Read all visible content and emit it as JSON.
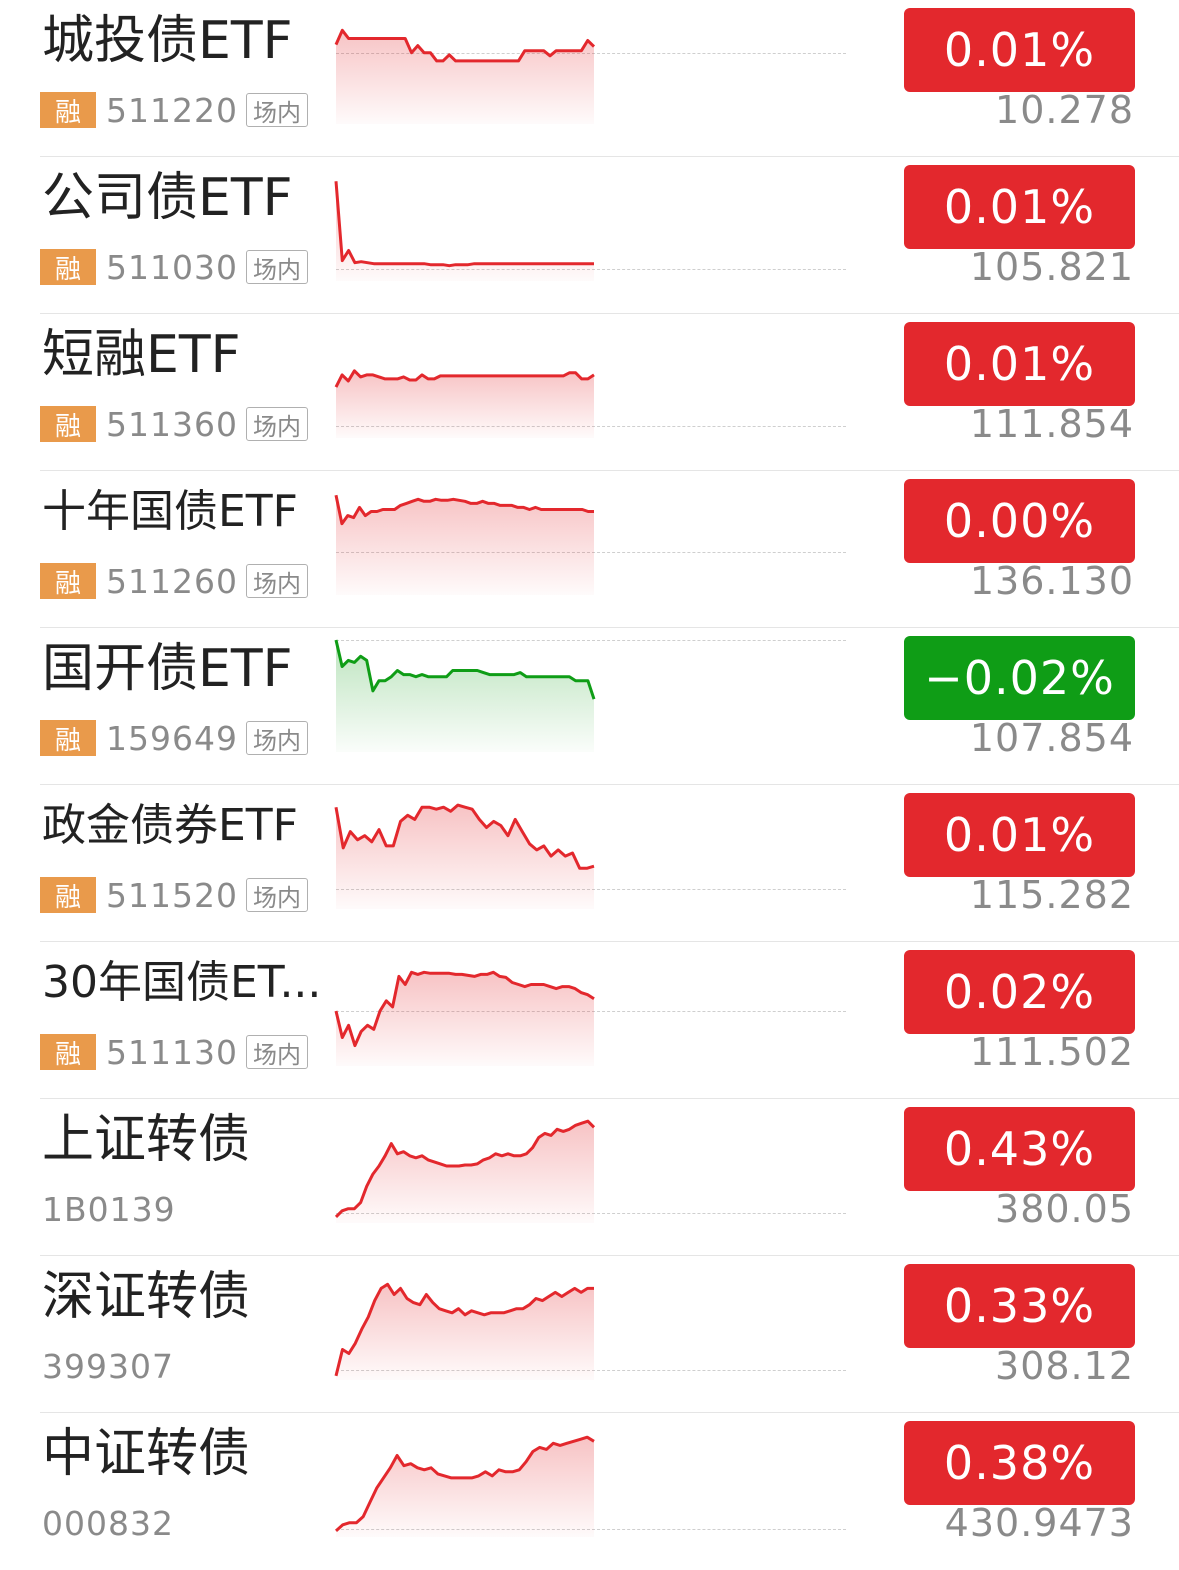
{
  "colors": {
    "up": "#e3282d",
    "down": "#0f9d16",
    "rong_badge": "#e99a4b",
    "muted": "#8a8a8a",
    "text": "#222222"
  },
  "rows": [
    {
      "name": "城投债ETF",
      "rong": "融",
      "code": "511220",
      "tag": "场内",
      "change": "0.01%",
      "price": "10.278",
      "trend": "up",
      "spark": [
        78,
        92,
        84,
        84,
        84,
        84,
        84,
        84,
        84,
        84,
        84,
        84,
        70,
        77,
        70,
        70,
        62,
        62,
        68,
        62,
        62,
        62,
        62,
        62,
        62,
        62,
        62,
        62,
        62,
        62,
        72,
        72,
        72,
        72,
        67,
        72,
        72,
        72,
        72,
        72,
        82,
        76
      ],
      "base": 70
    },
    {
      "name": "公司债ETF",
      "rong": "融",
      "code": "511030",
      "tag": "场内",
      "change": "0.01%",
      "price": "105.821",
      "trend": "up",
      "spark": [
        98,
        20,
        30,
        18,
        19,
        18,
        17,
        17,
        17,
        17,
        17,
        17,
        17,
        17,
        17,
        16,
        16,
        16,
        15,
        16,
        16,
        16,
        17,
        17,
        17,
        17,
        17,
        17,
        17,
        17,
        17,
        17,
        17,
        17,
        17,
        17,
        17,
        17,
        17,
        17,
        17,
        17
      ],
      "base": 12
    },
    {
      "name": "短融ETF",
      "rong": "融",
      "code": "511360",
      "tag": "场内",
      "change": "0.01%",
      "price": "111.854",
      "trend": "up",
      "spark": [
        50,
        62,
        56,
        66,
        60,
        62,
        62,
        60,
        58,
        58,
        58,
        60,
        57,
        57,
        62,
        58,
        58,
        61,
        61,
        61,
        61,
        61,
        61,
        61,
        61,
        61,
        61,
        61,
        61,
        61,
        61,
        61,
        61,
        61,
        61,
        61,
        61,
        61,
        64,
        64,
        58,
        58,
        62
      ],
      "base": 12
    },
    {
      "name": "十年国债ETF",
      "rong": "融",
      "code": "511260",
      "tag": "场内",
      "change": "0.00%",
      "price": "136.130",
      "trend": "up",
      "spark": [
        98,
        70,
        78,
        76,
        86,
        78,
        82,
        82,
        84,
        84,
        84,
        88,
        90,
        92,
        94,
        92,
        92,
        94,
        93,
        93,
        94,
        93,
        92,
        90,
        90,
        92,
        90,
        90,
        88,
        88,
        88,
        86,
        86,
        84,
        86,
        84,
        84,
        84,
        84,
        84,
        84,
        84,
        84,
        82,
        82
      ],
      "base": 42
    },
    {
      "name": "国开债ETF",
      "rong": "融",
      "code": "159649",
      "tag": "场内",
      "change": "−0.02%",
      "price": "107.854",
      "trend": "down",
      "spark": [
        110,
        84,
        90,
        88,
        94,
        90,
        60,
        70,
        70,
        74,
        80,
        76,
        76,
        74,
        76,
        74,
        74,
        74,
        74,
        80,
        80,
        80,
        80,
        80,
        78,
        76,
        76,
        76,
        76,
        76,
        78,
        74,
        74,
        74,
        74,
        74,
        74,
        74,
        74,
        70,
        70,
        70,
        52
      ],
      "base": 110
    },
    {
      "name": "政金债券ETF",
      "rong": "融",
      "code": "511520",
      "tag": "场内",
      "change": "0.01%",
      "price": "115.282",
      "trend": "up",
      "spark": [
        100,
        60,
        76,
        68,
        72,
        66,
        78,
        62,
        62,
        86,
        92,
        88,
        100,
        100,
        98,
        100,
        96,
        102,
        100,
        98,
        88,
        80,
        86,
        82,
        72,
        88,
        76,
        64,
        58,
        62,
        52,
        58,
        52,
        55,
        40,
        40,
        42
      ],
      "base": 20
    },
    {
      "name": "30年国债ET...",
      "rong": "融",
      "code": "511130",
      "tag": "场内",
      "change": "0.02%",
      "price": "111.502",
      "trend": "up",
      "spark": [
        54,
        28,
        40,
        20,
        34,
        40,
        36,
        54,
        64,
        58,
        88,
        80,
        92,
        90,
        92,
        91,
        91,
        91,
        91,
        90,
        90,
        89,
        88,
        90,
        90,
        92,
        88,
        87,
        82,
        80,
        78,
        80,
        80,
        80,
        78,
        76,
        78,
        78,
        76,
        72,
        70,
        66
      ],
      "base": 54
    },
    {
      "name": "上证转债",
      "rong": "",
      "code": "1B0139",
      "tag": "",
      "change": "0.43%",
      "price": "380.05",
      "trend": "up",
      "spark": [
        6,
        12,
        14,
        14,
        20,
        36,
        48,
        56,
        66,
        78,
        68,
        70,
        66,
        64,
        66,
        62,
        60,
        58,
        56,
        56,
        56,
        57,
        57,
        58,
        62,
        64,
        68,
        66,
        68,
        66,
        66,
        68,
        74,
        84,
        88,
        86,
        92,
        90,
        92,
        96,
        98,
        100,
        94
      ],
      "base": 10
    },
    {
      "name": "深证转债",
      "rong": "",
      "code": "399307",
      "tag": "",
      "change": "0.33%",
      "price": "308.12",
      "trend": "up",
      "spark": [
        4,
        30,
        26,
        36,
        50,
        62,
        78,
        90,
        94,
        84,
        90,
        80,
        76,
        74,
        84,
        76,
        70,
        68,
        66,
        70,
        64,
        68,
        66,
        64,
        66,
        66,
        66,
        68,
        70,
        70,
        74,
        80,
        78,
        82,
        86,
        82,
        86,
        90,
        86,
        90,
        90
      ],
      "base": 10
    },
    {
      "name": "中证转债",
      "rong": "",
      "code": "000832",
      "tag": "",
      "change": "0.38%",
      "price": "430.9473",
      "trend": "up",
      "spark": [
        6,
        12,
        14,
        14,
        20,
        34,
        48,
        58,
        68,
        80,
        70,
        72,
        68,
        66,
        68,
        62,
        60,
        58,
        58,
        58,
        58,
        60,
        64,
        60,
        66,
        64,
        64,
        66,
        74,
        84,
        88,
        86,
        92,
        90,
        92,
        94,
        96,
        98,
        94
      ],
      "base": 8
    }
  ]
}
